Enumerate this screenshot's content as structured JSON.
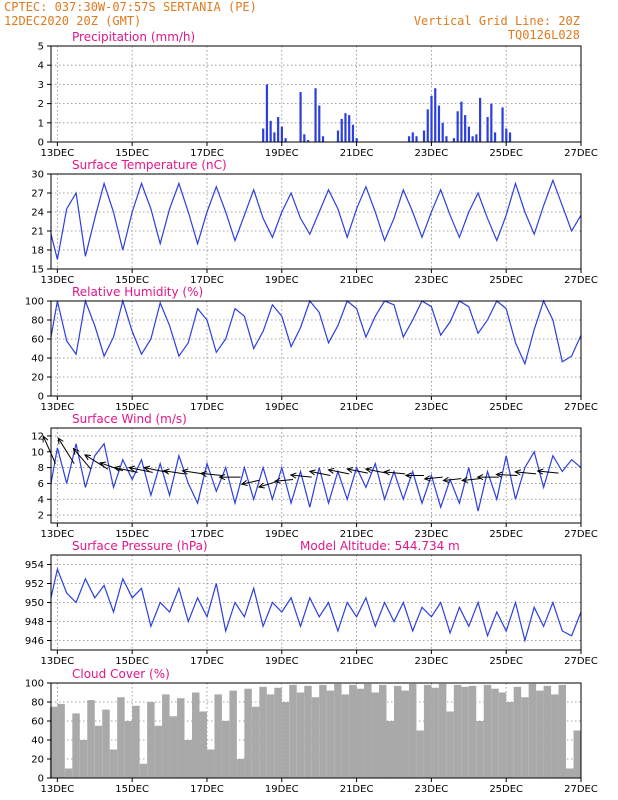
{
  "header": {
    "line1": "CPTEC:  037:30W-07:57S  SERTANIA (PE)",
    "line2": "12DEC2020 20Z (GMT)",
    "grid_note": "Vertical Grid Line: 20Z",
    "code": "TQ0126L028"
  },
  "colors": {
    "header": "#e07a1f",
    "title": "#e0178a",
    "series": "#2b3fe0",
    "bars": "#2b3fe0",
    "wind_arrow": "#000000",
    "cloud": "#a9a9a9"
  },
  "x_axis": {
    "day_ticks": [
      "13DEC",
      "15DEC",
      "17DEC",
      "19DEC",
      "21DEC",
      "23DEC",
      "25DEC",
      "27DEC"
    ],
    "start_day": 12.83,
    "end_day": 27.0
  },
  "chart_data": [
    {
      "type": "bar",
      "title": "Precipitation (mm/h)",
      "ylim": [
        0,
        5
      ],
      "yticks": [
        0,
        1,
        2,
        3,
        4,
        5
      ],
      "x_days": [
        18.5,
        18.6,
        18.7,
        18.8,
        18.9,
        19.0,
        19.1,
        19.5,
        19.6,
        19.7,
        19.9,
        20.0,
        20.1,
        20.5,
        20.6,
        20.7,
        20.8,
        20.9,
        21.0,
        22.4,
        22.5,
        22.6,
        22.8,
        22.9,
        23.0,
        23.1,
        23.2,
        23.3,
        23.4,
        23.6,
        23.7,
        23.8,
        23.9,
        24.0,
        24.1,
        24.2,
        24.3,
        24.5,
        24.6,
        24.7,
        24.9,
        25.0,
        25.1
      ],
      "values": [
        0.7,
        3.0,
        1.1,
        0.5,
        1.3,
        0.8,
        0.2,
        2.6,
        0.4,
        0.1,
        2.8,
        1.9,
        0.3,
        0.6,
        1.2,
        1.5,
        1.4,
        0.9,
        0.2,
        0.3,
        0.5,
        0.3,
        0.6,
        1.7,
        2.4,
        2.8,
        1.9,
        1.0,
        0.3,
        0.2,
        1.6,
        2.1,
        1.4,
        0.8,
        0.3,
        0.4,
        2.3,
        1.3,
        2.0,
        0.5,
        1.8,
        0.7,
        0.5
      ]
    },
    {
      "type": "line",
      "title": "Surface Temperature (nC)",
      "ylim": [
        15,
        30
      ],
      "yticks": [
        15,
        18,
        21,
        24,
        27,
        30
      ],
      "x_days": [
        12.83,
        13.0,
        13.25,
        13.5,
        13.75,
        14.0,
        14.25,
        14.5,
        14.75,
        15.0,
        15.25,
        15.5,
        15.75,
        16.0,
        16.25,
        16.5,
        16.75,
        17.0,
        17.25,
        17.5,
        17.75,
        18.0,
        18.25,
        18.5,
        18.75,
        19.0,
        19.25,
        19.5,
        19.75,
        20.0,
        20.25,
        20.5,
        20.75,
        21.0,
        21.25,
        21.5,
        21.75,
        22.0,
        22.25,
        22.5,
        22.75,
        23.0,
        23.25,
        23.5,
        23.75,
        24.0,
        24.25,
        24.5,
        24.75,
        25.0,
        25.25,
        25.5,
        25.75,
        26.0,
        26.25,
        26.5,
        26.75,
        27.0
      ],
      "values": [
        20.5,
        16.5,
        24.5,
        27.0,
        17.0,
        23.0,
        28.5,
        24.0,
        18.0,
        24.0,
        28.5,
        24.5,
        19.0,
        24.5,
        28.5,
        24.0,
        19.0,
        24.0,
        28.0,
        24.0,
        19.5,
        23.5,
        27.5,
        23.0,
        20.0,
        24.0,
        27.0,
        23.0,
        20.5,
        24.0,
        27.5,
        24.5,
        20.0,
        24.5,
        28.0,
        24.0,
        19.5,
        23.0,
        27.5,
        24.0,
        20.0,
        24.0,
        27.5,
        23.5,
        20.0,
        24.0,
        27.0,
        23.0,
        19.5,
        23.5,
        28.5,
        24.0,
        20.5,
        25.0,
        29.0,
        25.0,
        21.0,
        23.5
      ]
    },
    {
      "type": "line",
      "title": "Relative Humidity (%)",
      "ylim": [
        0,
        100
      ],
      "yticks": [
        0,
        20,
        40,
        60,
        80,
        100
      ],
      "x_days": [
        12.83,
        13.0,
        13.25,
        13.5,
        13.75,
        14.0,
        14.25,
        14.5,
        14.75,
        15.0,
        15.25,
        15.5,
        15.75,
        16.0,
        16.25,
        16.5,
        16.75,
        17.0,
        17.25,
        17.5,
        17.75,
        18.0,
        18.25,
        18.5,
        18.75,
        19.0,
        19.25,
        19.5,
        19.75,
        20.0,
        20.25,
        20.5,
        20.75,
        21.0,
        21.25,
        21.5,
        21.75,
        22.0,
        22.25,
        22.5,
        22.75,
        23.0,
        23.25,
        23.5,
        23.75,
        24.0,
        24.25,
        24.5,
        24.75,
        25.0,
        25.25,
        25.5,
        25.75,
        26.0,
        26.25,
        26.5,
        26.75,
        27.0
      ],
      "values": [
        62,
        100,
        58,
        44,
        100,
        74,
        42,
        62,
        100,
        68,
        44,
        60,
        98,
        74,
        42,
        56,
        92,
        80,
        46,
        60,
        92,
        84,
        50,
        68,
        96,
        84,
        52,
        72,
        100,
        88,
        56,
        74,
        100,
        92,
        62,
        84,
        100,
        96,
        62,
        80,
        100,
        94,
        64,
        78,
        100,
        94,
        66,
        80,
        100,
        92,
        56,
        34,
        70,
        100,
        80,
        36,
        42,
        64
      ]
    },
    {
      "type": "line",
      "title": "Surface Wind (m/s)",
      "ylim": [
        1,
        13
      ],
      "yticks": [
        2,
        4,
        6,
        8,
        10,
        12
      ],
      "x_days": [
        12.83,
        13.0,
        13.25,
        13.5,
        13.75,
        14.0,
        14.25,
        14.5,
        14.75,
        15.0,
        15.25,
        15.5,
        15.75,
        16.0,
        16.25,
        16.5,
        16.75,
        17.0,
        17.25,
        17.5,
        17.75,
        18.0,
        18.25,
        18.5,
        18.75,
        19.0,
        19.25,
        19.5,
        19.75,
        20.0,
        20.25,
        20.5,
        20.75,
        21.0,
        21.25,
        21.5,
        21.75,
        22.0,
        22.25,
        22.5,
        22.75,
        23.0,
        23.25,
        23.5,
        23.75,
        24.0,
        24.25,
        24.5,
        24.75,
        25.0,
        25.25,
        25.5,
        25.75,
        26.0,
        26.25,
        26.5,
        26.75,
        27.0
      ],
      "values": [
        6.0,
        10.5,
        6.0,
        11.0,
        5.5,
        9.5,
        11.0,
        5.5,
        9.0,
        6.5,
        9.0,
        4.5,
        8.5,
        4.5,
        9.5,
        6.0,
        3.5,
        8.5,
        5.0,
        8.0,
        3.5,
        8.0,
        4.0,
        8.0,
        4.0,
        8.0,
        3.5,
        7.5,
        3.0,
        8.0,
        3.5,
        7.5,
        4.0,
        8.0,
        5.5,
        8.5,
        4.0,
        7.5,
        4.0,
        7.5,
        3.5,
        7.0,
        3.0,
        6.5,
        3.5,
        8.0,
        2.5,
        7.5,
        4.0,
        9.5,
        4.0,
        8.0,
        10.0,
        5.5,
        9.5,
        7.5,
        9.0,
        8.0
      ],
      "arrows": {
        "x_days": [
          12.95,
          13.45,
          13.9,
          14.35,
          14.75,
          15.15,
          15.55,
          15.95,
          16.4,
          16.9,
          17.4,
          17.9,
          18.4,
          18.85,
          19.3,
          19.8,
          20.3,
          20.8,
          21.3,
          21.8,
          22.3,
          22.8,
          23.3,
          23.8,
          24.3,
          24.8,
          25.3,
          25.8,
          26.4
        ],
        "y": [
          8.5,
          8.5,
          7.8,
          7.8,
          7.6,
          7.4,
          7.4,
          7.4,
          7.2,
          7.2,
          7.0,
          6.8,
          6.4,
          6.2,
          6.5,
          6.8,
          7.0,
          7.2,
          7.3,
          7.3,
          7.2,
          7.0,
          6.8,
          6.6,
          6.6,
          6.8,
          7.0,
          7.2,
          7.3
        ],
        "u": [
          -0.4,
          -0.5,
          -0.6,
          -0.8,
          -1.0,
          -1.0,
          -1.0,
          -1.0,
          -1.0,
          -1.0,
          -1.0,
          -0.9,
          -0.9,
          -1.0,
          -1.0,
          -1.0,
          -1.0,
          -1.0,
          -1.0,
          -1.0,
          -1.0,
          -1.0,
          -1.0,
          -1.0,
          -1.0,
          -1.0,
          -1.0,
          -1.0,
          -1.0
        ],
        "v": [
          0.9,
          0.8,
          0.7,
          0.5,
          0.35,
          0.2,
          0.2,
          0.2,
          0.15,
          0.15,
          0.1,
          0.0,
          -0.2,
          -0.3,
          -0.1,
          0.1,
          0.2,
          0.2,
          0.2,
          0.2,
          0.1,
          0.0,
          -0.1,
          -0.1,
          -0.1,
          0.0,
          0.05,
          0.1,
          0.1
        ],
        "speed": [
          10,
          10,
          9,
          9,
          8,
          8,
          8,
          8,
          7,
          7,
          7,
          7,
          6,
          6,
          6,
          7,
          7,
          7,
          7,
          7,
          7,
          6,
          6,
          6,
          6,
          7,
          7,
          7,
          7
        ]
      }
    },
    {
      "type": "line",
      "title": "Surface Pressure (hPa)",
      "annotation": "Model Altitude: 544.734 m",
      "ylim": [
        945,
        955
      ],
      "yticks": [
        946,
        948,
        950,
        952,
        954
      ],
      "x_days": [
        12.83,
        13.0,
        13.25,
        13.5,
        13.75,
        14.0,
        14.25,
        14.5,
        14.75,
        15.0,
        15.25,
        15.5,
        15.75,
        16.0,
        16.25,
        16.5,
        16.75,
        17.0,
        17.25,
        17.5,
        17.75,
        18.0,
        18.25,
        18.5,
        18.75,
        19.0,
        19.25,
        19.5,
        19.75,
        20.0,
        20.25,
        20.5,
        20.75,
        21.0,
        21.25,
        21.5,
        21.75,
        22.0,
        22.25,
        22.5,
        22.75,
        23.0,
        23.25,
        23.5,
        23.75,
        24.0,
        24.25,
        24.5,
        24.75,
        25.0,
        25.25,
        25.5,
        25.75,
        26.0,
        26.25,
        26.5,
        26.75,
        27.0
      ],
      "values": [
        950.5,
        953.5,
        951.0,
        950.0,
        952.5,
        950.5,
        951.8,
        949.0,
        952.5,
        950.5,
        951.5,
        947.5,
        950.0,
        949.0,
        951.5,
        948.0,
        950.5,
        948.5,
        952.0,
        947.0,
        950.0,
        948.5,
        951.5,
        947.5,
        950.0,
        949.0,
        950.5,
        947.5,
        950.5,
        948.5,
        950.0,
        947.0,
        950.0,
        948.5,
        950.5,
        947.5,
        950.0,
        948.0,
        950.0,
        947.0,
        949.5,
        948.5,
        950.0,
        946.8,
        949.5,
        947.5,
        950.0,
        946.5,
        949.0,
        947.0,
        950.0,
        946.0,
        949.5,
        947.5,
        950.0,
        947.0,
        946.5,
        949.0
      ]
    },
    {
      "type": "bar",
      "title": "Cloud Cover (%)",
      "ylim": [
        0,
        100
      ],
      "yticks": [
        0,
        20,
        40,
        60,
        80,
        100
      ],
      "x_days": [
        12.9,
        13.1,
        13.3,
        13.5,
        13.7,
        13.9,
        14.1,
        14.3,
        14.5,
        14.7,
        14.9,
        15.1,
        15.3,
        15.5,
        15.7,
        15.9,
        16.1,
        16.3,
        16.5,
        16.7,
        16.9,
        17.1,
        17.3,
        17.5,
        17.7,
        17.9,
        18.1,
        18.3,
        18.5,
        18.7,
        18.9,
        19.1,
        19.3,
        19.5,
        19.7,
        19.9,
        20.1,
        20.3,
        20.5,
        20.7,
        20.9,
        21.1,
        21.3,
        21.5,
        21.7,
        21.9,
        22.1,
        22.3,
        22.5,
        22.7,
        22.9,
        23.1,
        23.3,
        23.5,
        23.7,
        23.9,
        24.1,
        24.3,
        24.5,
        24.7,
        24.9,
        25.1,
        25.3,
        25.5,
        25.7,
        25.9,
        26.1,
        26.3,
        26.5,
        26.7,
        26.9
      ],
      "values": [
        75,
        78,
        10,
        68,
        40,
        82,
        55,
        72,
        30,
        85,
        60,
        76,
        15,
        80,
        55,
        88,
        65,
        84,
        40,
        90,
        70,
        30,
        88,
        60,
        92,
        20,
        94,
        75,
        96,
        88,
        95,
        80,
        98,
        90,
        97,
        85,
        98,
        92,
        99,
        88,
        98,
        94,
        99,
        90,
        98,
        60,
        97,
        92,
        99,
        50,
        98,
        95,
        99,
        70,
        98,
        96,
        97,
        60,
        98,
        94,
        90,
        80,
        96,
        85,
        99,
        92,
        97,
        88,
        98,
        10,
        50
      ]
    }
  ]
}
